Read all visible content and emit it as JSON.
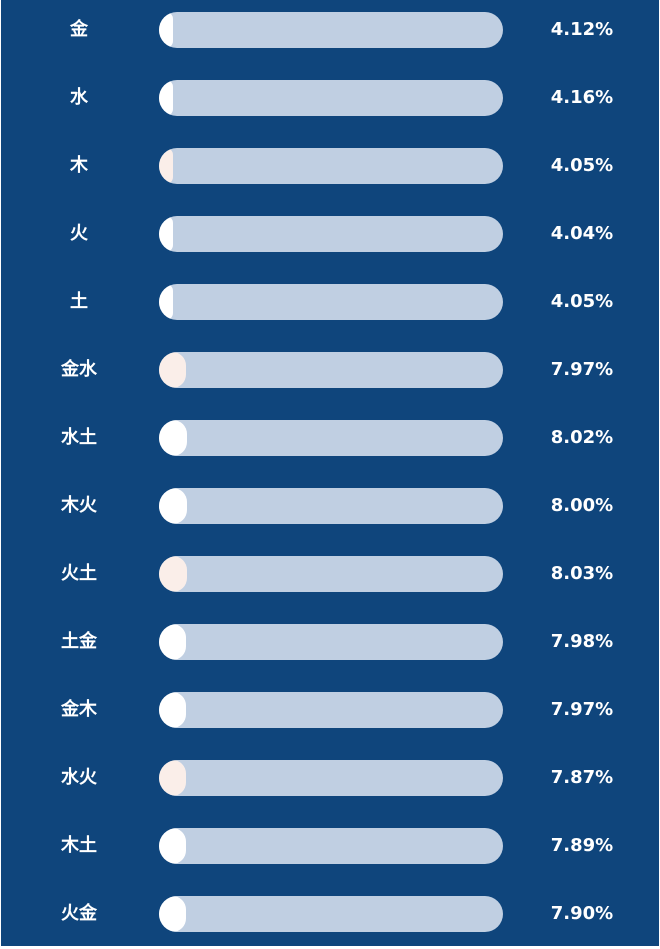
{
  "chart_data": {
    "type": "bar",
    "orientation": "horizontal",
    "xlim": [
      0,
      100
    ],
    "colors": {
      "background": "#0f457c",
      "track": "#c0cfe2",
      "fill_default": "#ffffff",
      "fill_alt": "#faeee9",
      "text": "#ffffff"
    },
    "categories": [
      "金",
      "水",
      "木",
      "火",
      "土",
      "金水",
      "水土",
      "木火",
      "火土",
      "土金",
      "金木",
      "水火",
      "木土",
      "火金"
    ],
    "values": [
      4.12,
      4.16,
      4.05,
      4.04,
      4.05,
      7.97,
      8.02,
      8.0,
      8.03,
      7.98,
      7.97,
      7.87,
      7.89,
      7.9
    ],
    "value_labels": [
      "4.12%",
      "4.16%",
      "4.05%",
      "4.04%",
      "4.05%",
      "7.97%",
      "8.02%",
      "8.00%",
      "8.03%",
      "7.98%",
      "7.97%",
      "7.87%",
      "7.89%",
      "7.90%"
    ],
    "fill_colors": [
      "#ffffff",
      "#ffffff",
      "#faeee9",
      "#ffffff",
      "#ffffff",
      "#faeee9",
      "#ffffff",
      "#ffffff",
      "#faeee9",
      "#ffffff",
      "#ffffff",
      "#faeee9",
      "#ffffff",
      "#ffffff"
    ]
  }
}
